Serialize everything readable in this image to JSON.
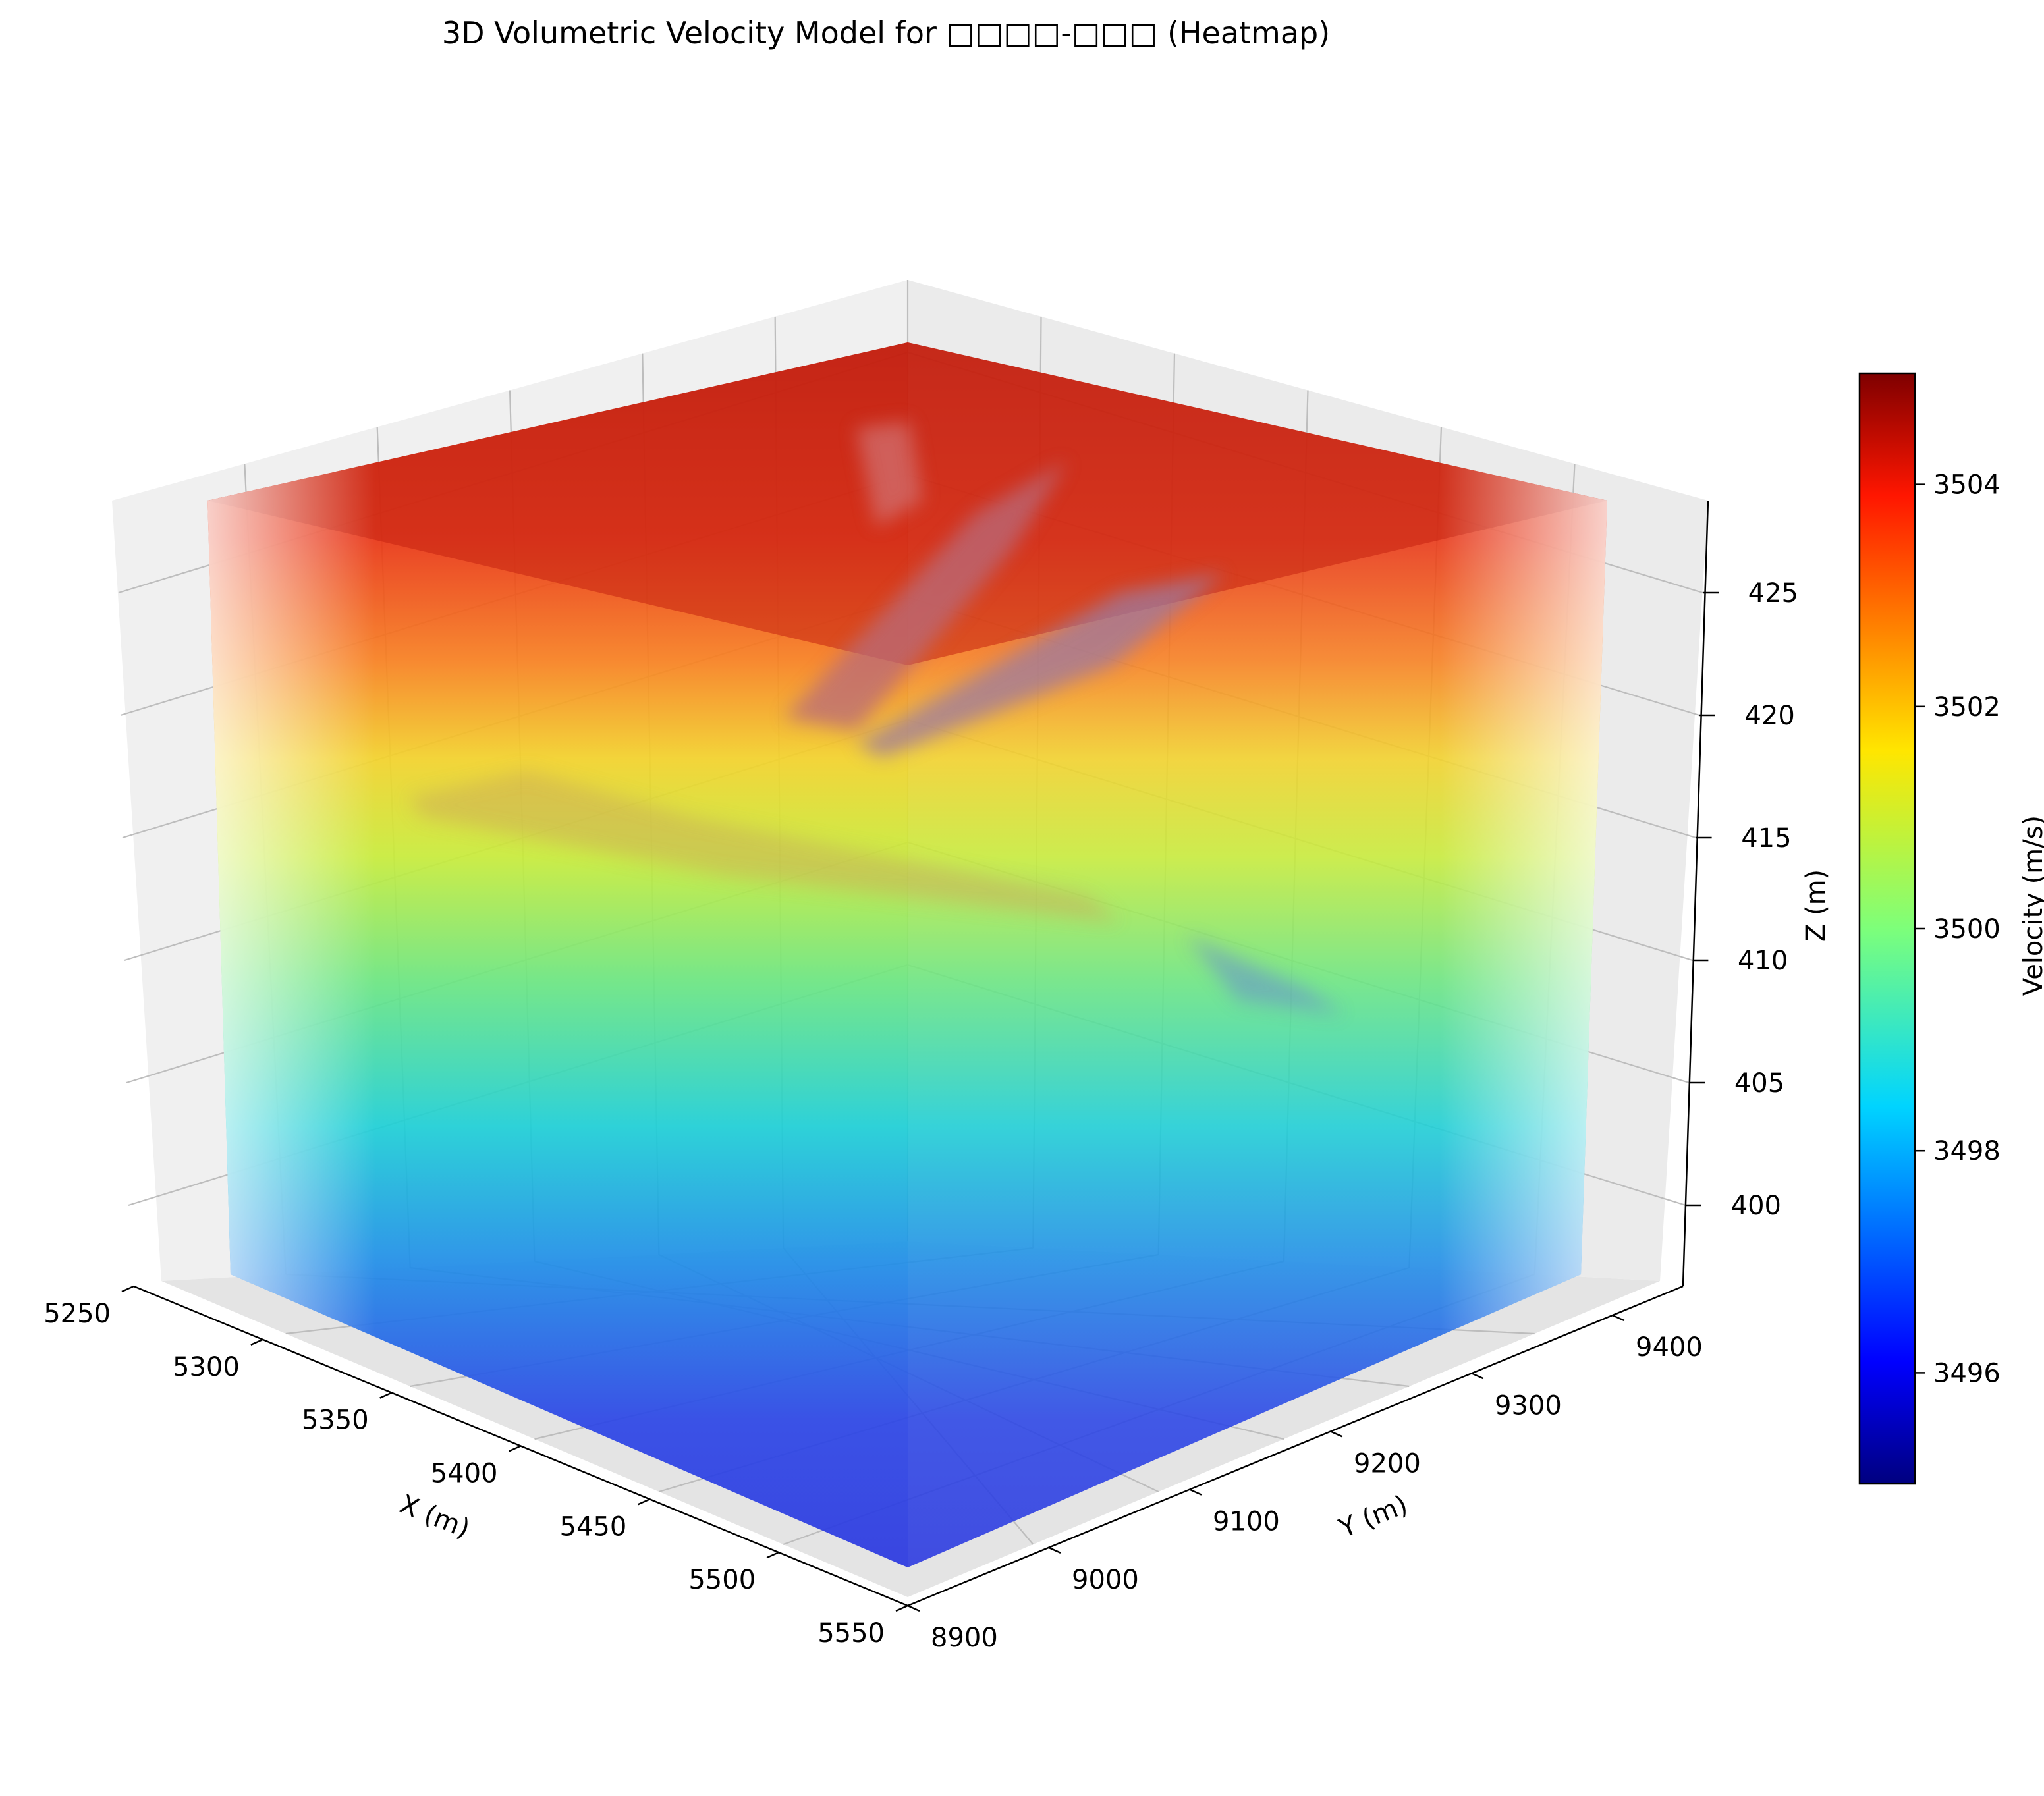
{
  "chart_data": {
    "type": "heatmap",
    "title": "3D Volumetric Velocity Model for □□□□-□□□ (Heatmap)",
    "xlabel": "X (m)",
    "ylabel": "Y (m)",
    "zlabel": "Z (m)",
    "colorbar_label": "Velocity (m/s)",
    "colormap": "jet",
    "x_ticks": [
      "5250",
      "5300",
      "5350",
      "5400",
      "5450",
      "5500",
      "5550"
    ],
    "y_ticks": [
      "8900",
      "9000",
      "9100",
      "9200",
      "9300",
      "9400"
    ],
    "z_ticks": [
      "400",
      "405",
      "410",
      "415",
      "420",
      "425"
    ],
    "colorbar_ticks": [
      "3496",
      "3498",
      "3500",
      "3502",
      "3504"
    ],
    "xlim": [
      5250,
      5550
    ],
    "ylim": [
      8900,
      9450
    ],
    "zlim": [
      397,
      428
    ],
    "vlim": [
      3495,
      3505
    ],
    "velocity_by_depth": [
      {
        "z": 398,
        "v": 3496.8
      },
      {
        "z": 402,
        "v": 3497.2
      },
      {
        "z": 406,
        "v": 3498.6
      },
      {
        "z": 410,
        "v": 3500.4
      },
      {
        "z": 414,
        "v": 3501.6
      },
      {
        "z": 418,
        "v": 3503.2
      },
      {
        "z": 422,
        "v": 3504.2
      },
      {
        "z": 426,
        "v": 3504.6
      }
    ],
    "grid": true
  },
  "colors": {
    "grid": "#c8c8c8",
    "pane": "#f0f0f0",
    "axis": "#000000"
  }
}
